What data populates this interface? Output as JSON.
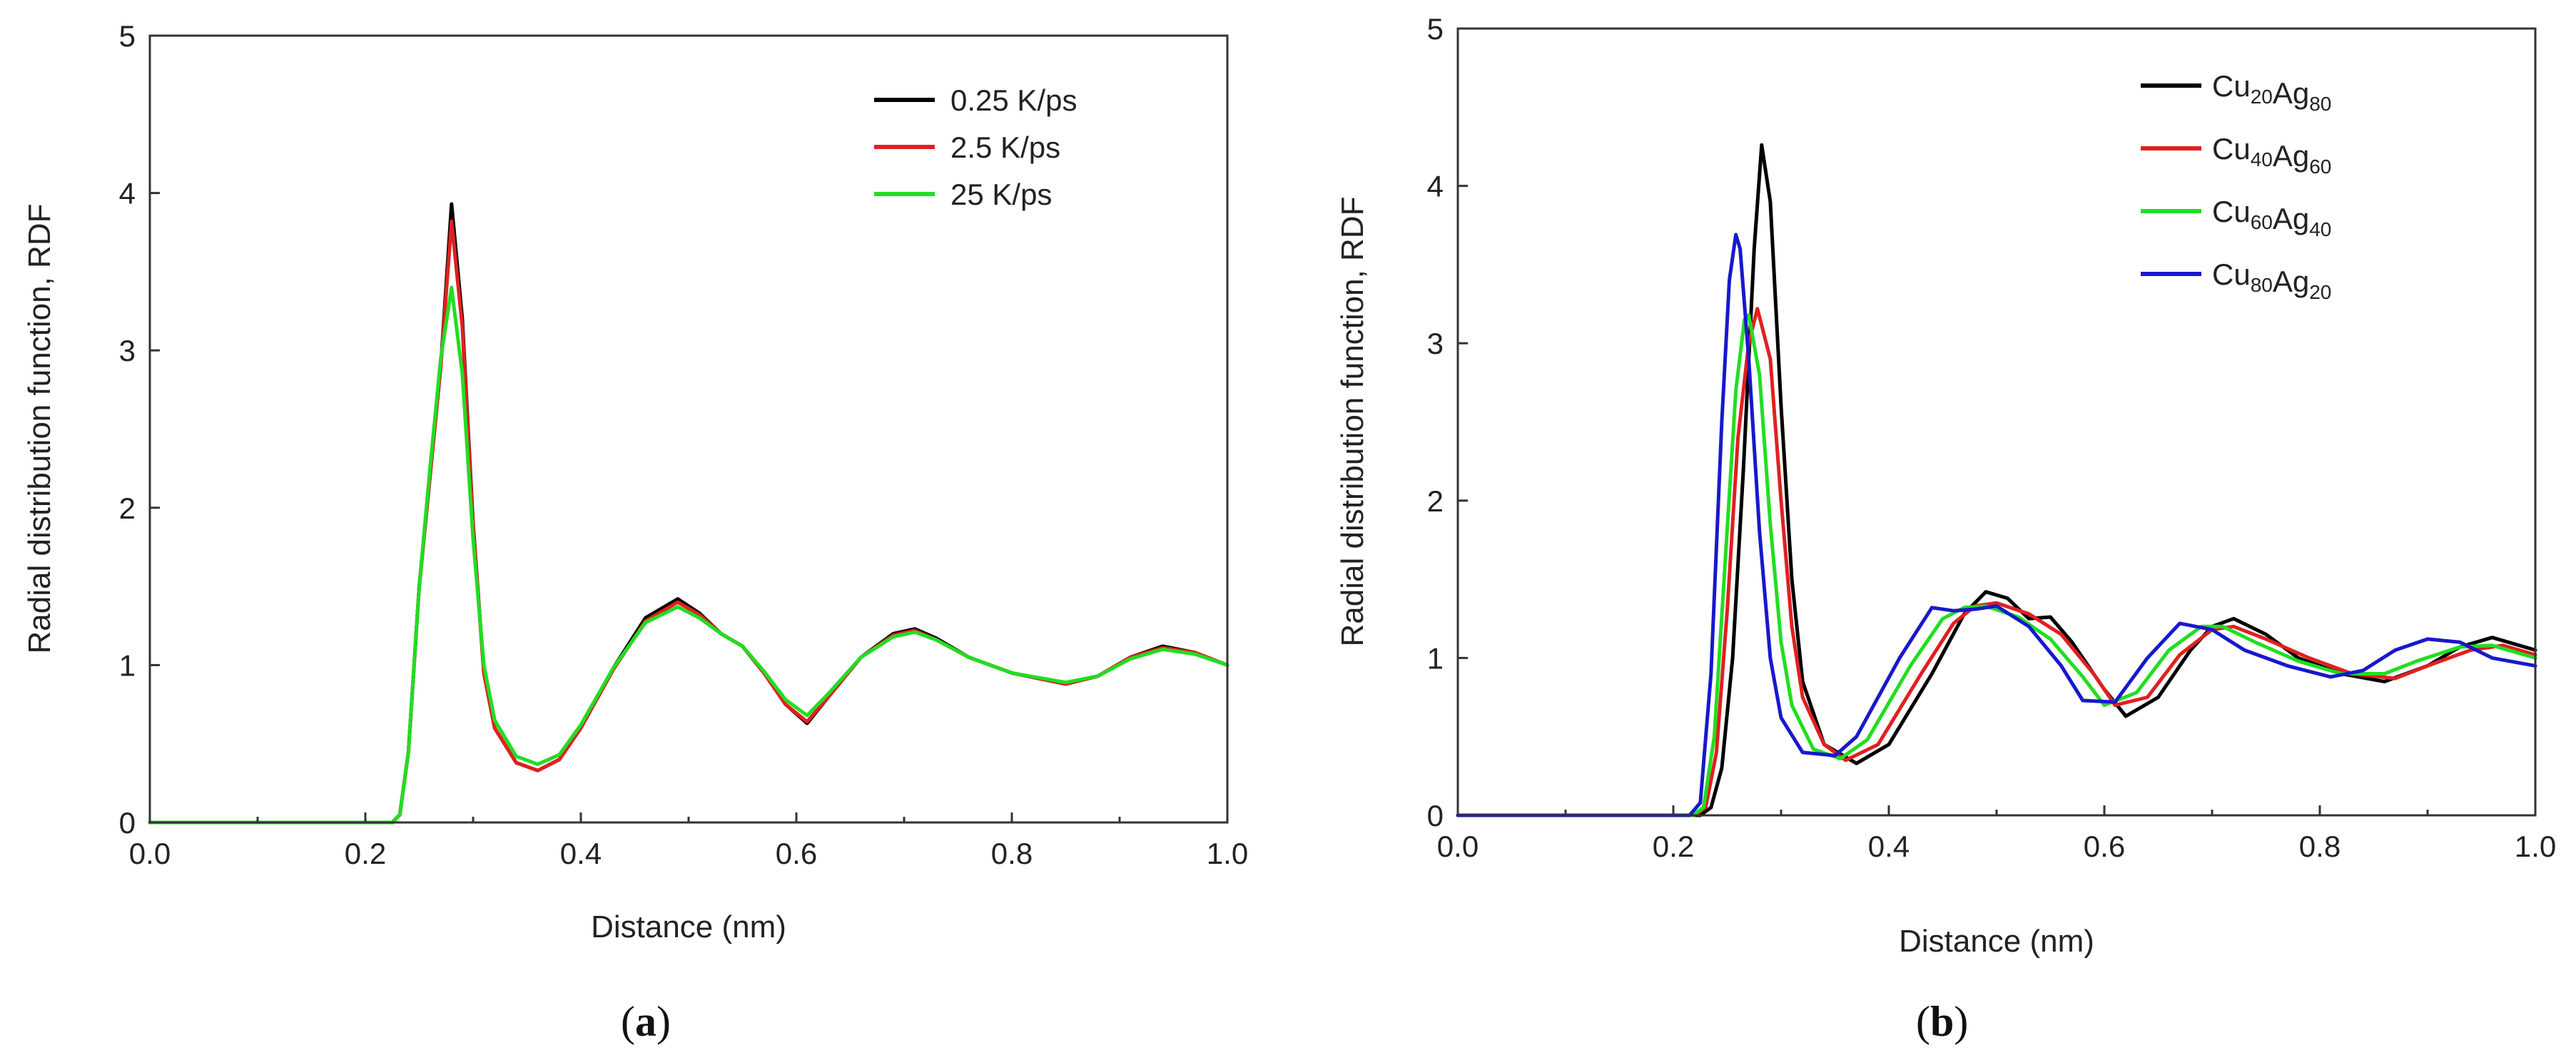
{
  "chart_data": [
    {
      "type": "line",
      "panel_label": "a",
      "xlabel": "Distance (nm)",
      "ylabel": "Radial distribution function, RDF",
      "xlim": [
        0.0,
        1.0
      ],
      "ylim": [
        0,
        5
      ],
      "xticks": [
        0.0,
        0.2,
        0.4,
        0.6,
        0.8,
        1.0
      ],
      "xtick_labels": [
        "0.0",
        "0.2",
        "0.4",
        "0.6",
        "0.8",
        "1.0"
      ],
      "yticks": [
        0,
        1,
        2,
        3,
        4,
        5
      ],
      "ytick_labels": [
        "0",
        "1",
        "2",
        "3",
        "4",
        "5"
      ],
      "legend_position": "top-right",
      "series": [
        {
          "name": "0.25 K/ps",
          "color": "#000000",
          "x": [
            0,
            0.225,
            0.232,
            0.24,
            0.25,
            0.26,
            0.27,
            0.28,
            0.29,
            0.3,
            0.31,
            0.32,
            0.34,
            0.36,
            0.38,
            0.4,
            0.43,
            0.46,
            0.49,
            0.51,
            0.53,
            0.55,
            0.57,
            0.59,
            0.61,
            0.63,
            0.66,
            0.69,
            0.71,
            0.73,
            0.76,
            0.8,
            0.85,
            0.88,
            0.91,
            0.94,
            0.97,
            1.0
          ],
          "y": [
            0,
            0,
            0.05,
            0.45,
            1.5,
            2.2,
            2.9,
            3.93,
            3.2,
            1.9,
            0.95,
            0.6,
            0.38,
            0.33,
            0.4,
            0.6,
            0.98,
            1.3,
            1.42,
            1.33,
            1.2,
            1.12,
            0.95,
            0.75,
            0.63,
            0.8,
            1.05,
            1.2,
            1.23,
            1.17,
            1.05,
            0.95,
            0.88,
            0.93,
            1.05,
            1.12,
            1.08,
            1.0
          ]
        },
        {
          "name": "2.5 K/ps",
          "color": "#e02020",
          "x": [
            0,
            0.225,
            0.232,
            0.24,
            0.25,
            0.26,
            0.27,
            0.28,
            0.29,
            0.3,
            0.31,
            0.32,
            0.34,
            0.36,
            0.38,
            0.4,
            0.43,
            0.46,
            0.49,
            0.51,
            0.53,
            0.55,
            0.57,
            0.59,
            0.61,
            0.63,
            0.66,
            0.69,
            0.71,
            0.73,
            0.76,
            0.8,
            0.85,
            0.88,
            0.91,
            0.94,
            0.97,
            1.0
          ],
          "y": [
            0,
            0,
            0.05,
            0.45,
            1.5,
            2.2,
            2.9,
            3.82,
            3.15,
            1.88,
            0.95,
            0.6,
            0.38,
            0.33,
            0.4,
            0.6,
            0.97,
            1.28,
            1.4,
            1.32,
            1.2,
            1.12,
            0.95,
            0.75,
            0.64,
            0.8,
            1.05,
            1.19,
            1.22,
            1.16,
            1.05,
            0.95,
            0.88,
            0.93,
            1.05,
            1.11,
            1.08,
            1.0
          ]
        },
        {
          "name": "25 K/ps",
          "color": "#22dd22",
          "x": [
            0,
            0.225,
            0.232,
            0.24,
            0.25,
            0.26,
            0.27,
            0.28,
            0.29,
            0.3,
            0.31,
            0.32,
            0.34,
            0.36,
            0.38,
            0.4,
            0.43,
            0.46,
            0.49,
            0.51,
            0.53,
            0.55,
            0.57,
            0.59,
            0.61,
            0.63,
            0.66,
            0.69,
            0.71,
            0.73,
            0.76,
            0.8,
            0.85,
            0.88,
            0.91,
            0.94,
            0.97,
            1.0
          ],
          "y": [
            0,
            0,
            0.05,
            0.45,
            1.5,
            2.25,
            2.95,
            3.4,
            2.85,
            1.8,
            1.0,
            0.65,
            0.42,
            0.37,
            0.43,
            0.62,
            0.98,
            1.27,
            1.37,
            1.3,
            1.2,
            1.12,
            0.96,
            0.78,
            0.68,
            0.82,
            1.05,
            1.18,
            1.21,
            1.16,
            1.05,
            0.95,
            0.89,
            0.93,
            1.04,
            1.1,
            1.07,
            1.0
          ]
        }
      ]
    },
    {
      "type": "line",
      "panel_label": "b",
      "xlabel": "Distance (nm)",
      "ylabel": "Radial distribution function, RDF",
      "xlim": [
        0.0,
        1.0
      ],
      "ylim": [
        0,
        5
      ],
      "xticks": [
        0.0,
        0.2,
        0.4,
        0.6,
        0.8,
        1.0
      ],
      "xtick_labels": [
        "0.0",
        "0.2",
        "0.4",
        "0.6",
        "0.8",
        "1.0"
      ],
      "yticks": [
        0,
        1,
        2,
        3,
        4,
        5
      ],
      "ytick_labels": [
        "0",
        "1",
        "2",
        "3",
        "4",
        "5"
      ],
      "legend_position": "top-right",
      "series": [
        {
          "name": "Cu20Ag80",
          "label_main": [
            "Cu",
            "Ag"
          ],
          "label_sub": [
            "20",
            "80"
          ],
          "color": "#000000",
          "x": [
            0,
            0.225,
            0.235,
            0.245,
            0.255,
            0.265,
            0.275,
            0.282,
            0.29,
            0.3,
            0.31,
            0.32,
            0.34,
            0.37,
            0.4,
            0.44,
            0.47,
            0.49,
            0.51,
            0.53,
            0.55,
            0.57,
            0.6,
            0.62,
            0.65,
            0.68,
            0.7,
            0.72,
            0.75,
            0.78,
            0.82,
            0.86,
            0.9,
            0.93,
            0.96,
            1.0
          ],
          "y": [
            0,
            0,
            0.05,
            0.3,
            1.0,
            2.2,
            3.6,
            4.26,
            3.9,
            2.6,
            1.5,
            0.85,
            0.45,
            0.33,
            0.45,
            0.9,
            1.28,
            1.42,
            1.38,
            1.25,
            1.26,
            1.1,
            0.8,
            0.63,
            0.75,
            1.05,
            1.2,
            1.25,
            1.15,
            1.0,
            0.9,
            0.85,
            0.95,
            1.07,
            1.13,
            1.05
          ]
        },
        {
          "name": "Cu40Ag60",
          "label_main": [
            "Cu",
            "Ag"
          ],
          "label_sub": [
            "40",
            "60"
          ],
          "color": "#e02020",
          "x": [
            0,
            0.22,
            0.23,
            0.24,
            0.25,
            0.26,
            0.27,
            0.278,
            0.29,
            0.3,
            0.31,
            0.32,
            0.34,
            0.36,
            0.39,
            0.43,
            0.46,
            0.48,
            0.5,
            0.53,
            0.56,
            0.59,
            0.61,
            0.64,
            0.67,
            0.7,
            0.72,
            0.75,
            0.79,
            0.83,
            0.87,
            0.9,
            0.94,
            0.97,
            1.0
          ],
          "y": [
            0,
            0,
            0.05,
            0.4,
            1.3,
            2.4,
            3.0,
            3.22,
            2.9,
            2.0,
            1.2,
            0.75,
            0.45,
            0.35,
            0.45,
            0.9,
            1.22,
            1.33,
            1.35,
            1.28,
            1.15,
            0.9,
            0.7,
            0.75,
            1.02,
            1.18,
            1.2,
            1.12,
            1.0,
            0.9,
            0.87,
            0.95,
            1.05,
            1.08,
            1.02
          ]
        },
        {
          "name": "Cu60Ag40",
          "label_main": [
            "Cu",
            "Ag"
          ],
          "label_sub": [
            "60",
            "40"
          ],
          "color": "#22dd22",
          "x": [
            0,
            0.218,
            0.228,
            0.238,
            0.248,
            0.258,
            0.266,
            0.27,
            0.28,
            0.29,
            0.3,
            0.31,
            0.33,
            0.355,
            0.38,
            0.42,
            0.45,
            0.47,
            0.49,
            0.52,
            0.55,
            0.58,
            0.6,
            0.63,
            0.66,
            0.69,
            0.71,
            0.74,
            0.78,
            0.82,
            0.86,
            0.89,
            0.93,
            0.96,
            1.0
          ],
          "y": [
            0,
            0,
            0.05,
            0.5,
            1.6,
            2.7,
            3.15,
            3.18,
            2.8,
            1.85,
            1.1,
            0.7,
            0.42,
            0.36,
            0.48,
            0.95,
            1.25,
            1.32,
            1.33,
            1.26,
            1.12,
            0.88,
            0.7,
            0.78,
            1.05,
            1.2,
            1.2,
            1.1,
            0.98,
            0.9,
            0.9,
            0.98,
            1.07,
            1.08,
            1.0
          ]
        },
        {
          "name": "Cu80Ag20",
          "label_main": [
            "Cu",
            "Ag"
          ],
          "label_sub": [
            "80",
            "20"
          ],
          "color": "#1818cc",
          "x": [
            0,
            0.215,
            0.225,
            0.235,
            0.245,
            0.252,
            0.258,
            0.262,
            0.27,
            0.28,
            0.29,
            0.3,
            0.32,
            0.35,
            0.37,
            0.41,
            0.44,
            0.46,
            0.48,
            0.5,
            0.53,
            0.56,
            0.58,
            0.61,
            0.64,
            0.67,
            0.7,
            0.73,
            0.77,
            0.81,
            0.84,
            0.87,
            0.9,
            0.93,
            0.96,
            1.0
          ],
          "y": [
            0,
            0,
            0.08,
            0.9,
            2.5,
            3.4,
            3.69,
            3.6,
            2.9,
            1.8,
            1.0,
            0.62,
            0.4,
            0.38,
            0.5,
            1.0,
            1.32,
            1.3,
            1.31,
            1.33,
            1.2,
            0.95,
            0.73,
            0.72,
            1.0,
            1.22,
            1.18,
            1.05,
            0.95,
            0.88,
            0.92,
            1.05,
            1.12,
            1.1,
            1.0,
            0.95
          ]
        }
      ]
    }
  ]
}
